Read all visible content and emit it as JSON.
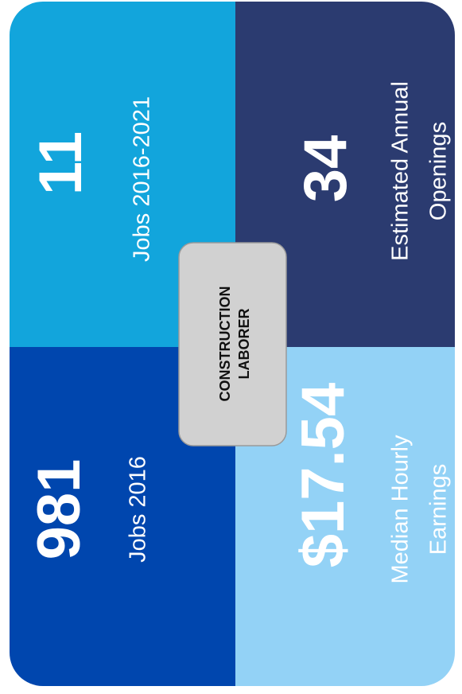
{
  "center": {
    "lines": [
      "CONSTRUCTION",
      "LABORER"
    ]
  },
  "tiles": [
    {
      "value": "11",
      "label": [
        "Jobs 2016-2021"
      ]
    },
    {
      "value": "34",
      "label": [
        "Estimated Annual",
        "Openings"
      ]
    },
    {
      "value": "981",
      "label": [
        "Jobs 2016"
      ]
    },
    {
      "value": "$17.54",
      "label": [
        "Median Hourly",
        "Earnings"
      ]
    }
  ]
}
